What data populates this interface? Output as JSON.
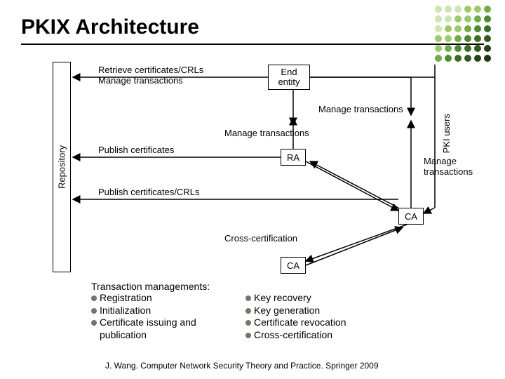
{
  "title": "PKIX Architecture",
  "dot_colors": [
    "#cde6b0",
    "#cde6b0",
    "#cde6b0",
    "#9acc66",
    "#9acc66",
    "#6fae3e",
    "#cde6b0",
    "#cde6b0",
    "#9acc66",
    "#9acc66",
    "#6fae3e",
    "#4a8c2a",
    "#cde6b0",
    "#9acc66",
    "#9acc66",
    "#6fae3e",
    "#4a8c2a",
    "#3a6e22",
    "#9acc66",
    "#9acc66",
    "#6fae3e",
    "#4a8c2a",
    "#3a6e22",
    "#2e5a1a",
    "#9acc66",
    "#6fae3e",
    "#4a8c2a",
    "#3a6e22",
    "#2e5a1a",
    "#234614",
    "#6fae3e",
    "#4a8c2a",
    "#3a6e22",
    "#2e5a1a",
    "#234614",
    "#1a350f"
  ],
  "colors": {
    "bullet": "#6f776a",
    "line": "#000000"
  },
  "boxes": {
    "repository": "Repository",
    "end_entity": "End\nentity",
    "ra": "RA",
    "ca1": "CA",
    "ca2": "CA",
    "pki_users": "PKI users"
  },
  "labels": {
    "retrieve": "Retrieve certificates/CRLs\nManage transactions",
    "publish_certs": "Publish certificates",
    "publish_crls": "Publish certificates/CRLs",
    "manage1": "Manage transactions",
    "manage2": "Manage transactions",
    "manage3": "Manage\ntransactions",
    "cross": "Cross-certification"
  },
  "transaction_mgmt": {
    "heading": "Transaction managements:",
    "left": [
      "Registration",
      "Initialization",
      "Certificate issuing and publication"
    ],
    "right": [
      "Key recovery",
      "Key generation",
      "Certificate revocation",
      "Cross-certification"
    ]
  },
  "footer": "J. Wang. Computer Network Security Theory and Practice. Springer 2009"
}
